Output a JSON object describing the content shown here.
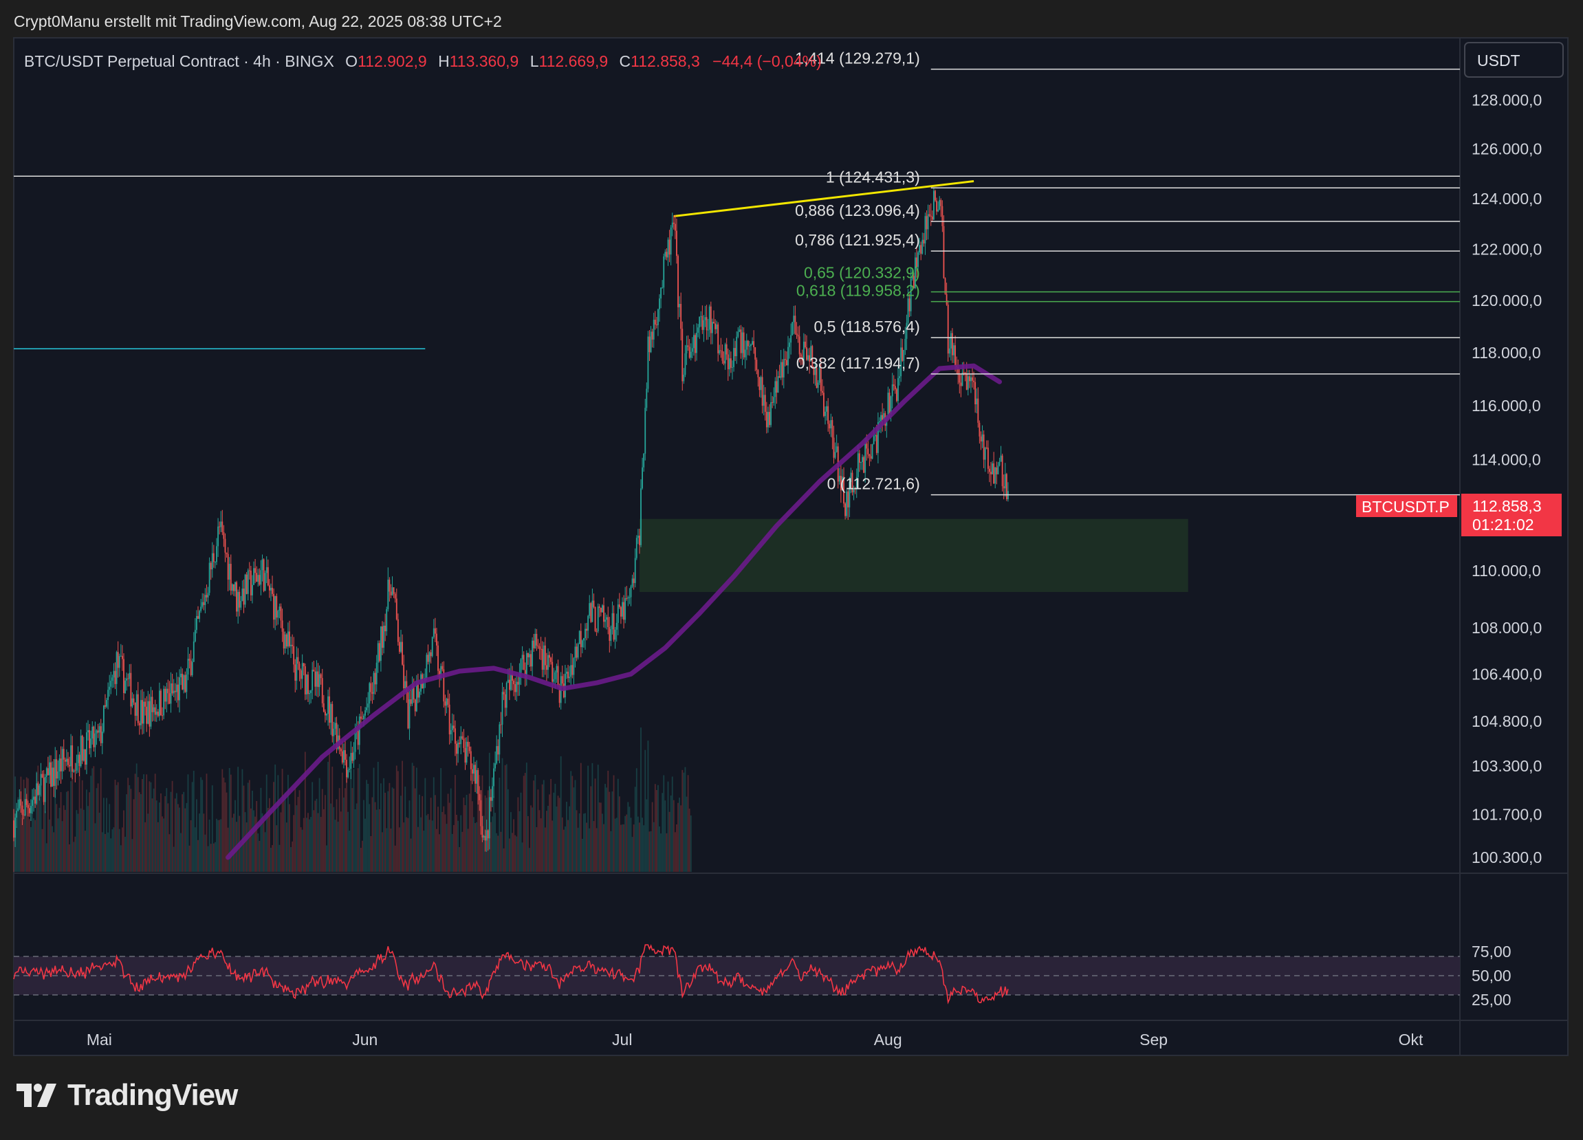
{
  "header": {
    "text": "Crypt0Manu erstellt mit TradingView.com, Aug 22, 2025 08:38 UTC+2"
  },
  "legend": {
    "symbol": "BTC/USDT Perpetual Contract · 4h · BINGX",
    "o_label": "O",
    "o_value": "112.902,9",
    "h_label": "H",
    "h_value": "113.360,9",
    "l_label": "L",
    "l_value": "112.669,9",
    "c_label": "C",
    "c_value": "112.858,3",
    "change": "−44,4 (−0,04%)"
  },
  "currency_button": "USDT",
  "price_tag": {
    "symbol": "BTCUSDT.P",
    "price": "112.858,3",
    "countdown": "01:21:02"
  },
  "brand": {
    "name": "TradingView"
  },
  "colors": {
    "up": "#26a69a",
    "down": "#ef5350",
    "ema": "#6a1b8a",
    "trendline": "#f2e600",
    "fib_green": "#4caf50",
    "zone": "#1e3324",
    "rsi": "#f23645",
    "rsi_band": "#2a2338",
    "tag": "#f23645",
    "cyan_line": "#26c6da"
  },
  "chart_data": {
    "type": "candlestick",
    "symbol": "BTC/USDT Perpetual Contract",
    "interval": "4h",
    "exchange": "BINGX",
    "y_scale": "log",
    "y_ticks": [
      100300,
      101700,
      103300,
      104800,
      106400,
      108000,
      110000,
      114000,
      116000,
      118000,
      120000,
      122000,
      124000,
      126000,
      128000
    ],
    "y_tick_labels": [
      "100.300,0",
      "101.700,0",
      "103.300,0",
      "104.800,0",
      "106.400,0",
      "108.000,0",
      "110.000,0",
      "114.000,0",
      "116.000,0",
      "118.000,0",
      "120.000,0",
      "122.000,0",
      "124.000,0",
      "126.000,0",
      "128.000,0"
    ],
    "x_labels": [
      "Mai",
      "Jun",
      "Jul",
      "Aug",
      "Sep",
      "Okt"
    ],
    "x_label_dates": [
      "2025-05-01",
      "2025-06-01",
      "2025-07-01",
      "2025-08-01",
      "2025-09-01",
      "2025-10-01"
    ],
    "x_range": [
      "2025-04-28",
      "2025-10-18"
    ],
    "price_path": [
      [
        "2025-04-28",
        101500
      ],
      [
        "2025-05-04",
        103500
      ],
      [
        "2025-05-08",
        104200
      ],
      [
        "2025-05-10",
        106800
      ],
      [
        "2025-05-13",
        105000
      ],
      [
        "2025-05-18",
        106000
      ],
      [
        "2025-05-22",
        111500
      ],
      [
        "2025-05-24",
        109000
      ],
      [
        "2025-05-27",
        110000
      ],
      [
        "2025-05-31",
        106500
      ],
      [
        "2025-06-03",
        105800
      ],
      [
        "2025-06-06",
        103300
      ],
      [
        "2025-06-09",
        106000
      ],
      [
        "2025-06-11",
        109700
      ],
      [
        "2025-06-13",
        105000
      ],
      [
        "2025-06-16",
        107500
      ],
      [
        "2025-06-18",
        104500
      ],
      [
        "2025-06-21",
        103000
      ],
      [
        "2025-06-22",
        100500
      ],
      [
        "2025-06-24",
        105500
      ],
      [
        "2025-06-28",
        107500
      ],
      [
        "2025-07-01",
        105800
      ],
      [
        "2025-07-04",
        108500
      ],
      [
        "2025-07-07",
        108000
      ],
      [
        "2025-07-09",
        109000
      ],
      [
        "2025-07-10",
        111500
      ],
      [
        "2025-07-11",
        118000
      ],
      [
        "2025-07-14",
        123000
      ],
      [
        "2025-07-15",
        117500
      ],
      [
        "2025-07-18",
        119500
      ],
      [
        "2025-07-20",
        117800
      ],
      [
        "2025-07-23",
        118600
      ],
      [
        "2025-07-25",
        115500
      ],
      [
        "2025-07-28",
        119000
      ],
      [
        "2025-07-31",
        117000
      ],
      [
        "2025-08-02",
        114000
      ],
      [
        "2025-08-03",
        112500
      ],
      [
        "2025-08-05",
        114000
      ],
      [
        "2025-08-07",
        115000
      ],
      [
        "2025-08-09",
        116800
      ],
      [
        "2025-08-11",
        121000
      ],
      [
        "2025-08-13",
        123500
      ],
      [
        "2025-08-14",
        124400
      ],
      [
        "2025-08-15",
        118500
      ],
      [
        "2025-08-16",
        117500
      ],
      [
        "2025-08-18",
        116800
      ],
      [
        "2025-08-19",
        114500
      ],
      [
        "2025-08-20",
        113500
      ],
      [
        "2025-08-21",
        114000
      ],
      [
        "2025-08-22",
        112858
      ]
    ],
    "last_price": 112858.3,
    "ema_series": [
      [
        "2025-05-23",
        100300
      ],
      [
        "2025-05-28",
        101800
      ],
      [
        "2025-06-03",
        103600
      ],
      [
        "2025-06-09",
        105000
      ],
      [
        "2025-06-14",
        106100
      ],
      [
        "2025-06-19",
        106500
      ],
      [
        "2025-06-23",
        106600
      ],
      [
        "2025-06-27",
        106300
      ],
      [
        "2025-07-01",
        105900
      ],
      [
        "2025-07-05",
        106100
      ],
      [
        "2025-07-09",
        106400
      ],
      [
        "2025-07-13",
        107300
      ],
      [
        "2025-07-17",
        108500
      ],
      [
        "2025-07-21",
        109800
      ],
      [
        "2025-07-26",
        111600
      ],
      [
        "2025-07-31",
        113200
      ],
      [
        "2025-08-05",
        114600
      ],
      [
        "2025-08-10",
        116200
      ],
      [
        "2025-08-14",
        117400
      ],
      [
        "2025-08-18",
        117500
      ],
      [
        "2025-08-21",
        116900
      ]
    ],
    "fibonacci": [
      {
        "label": "1,414 (129.279,1)",
        "price": 129279.1,
        "color": "white"
      },
      {
        "label": "1 (124.431,3)",
        "price": 124431.3,
        "color": "white"
      },
      {
        "label": "0,886 (123.096,4)",
        "price": 123096.4,
        "color": "white"
      },
      {
        "label": "0,786 (121.925,4)",
        "price": 121925.4,
        "color": "white"
      },
      {
        "label": "0,65 (120.332,9)",
        "price": 120332.9,
        "color": "green"
      },
      {
        "label": "0,618 (119.958,2)",
        "price": 119958.2,
        "color": "green"
      },
      {
        "label": "0,5 (118.576,4)",
        "price": 118576.4,
        "color": "white"
      },
      {
        "label": "0,382 (117.194,7)",
        "price": 117194.7,
        "color": "white"
      },
      {
        "label": "0 (112.721,6)",
        "price": 112721.6,
        "color": "white"
      }
    ],
    "horizontal_lines": [
      {
        "price": 124900,
        "from": "2025-04-28",
        "color": "white"
      },
      {
        "price": 118150,
        "from": "2025-04-28",
        "to": "2025-06-15",
        "color": "cyan"
      }
    ],
    "trendline": [
      [
        "2025-07-14",
        123300
      ],
      [
        "2025-08-18",
        124700
      ]
    ],
    "demand_zone": {
      "from": "2025-07-10",
      "to": "2025-09-12",
      "price_top": 111850,
      "price_bottom": 109250
    },
    "rsi": {
      "ticks": [
        25,
        50,
        75
      ],
      "tick_labels": [
        "25,00",
        "50,00",
        "75,00"
      ],
      "upper": 70,
      "middle": 50,
      "lower": 30,
      "last": 38
    }
  }
}
